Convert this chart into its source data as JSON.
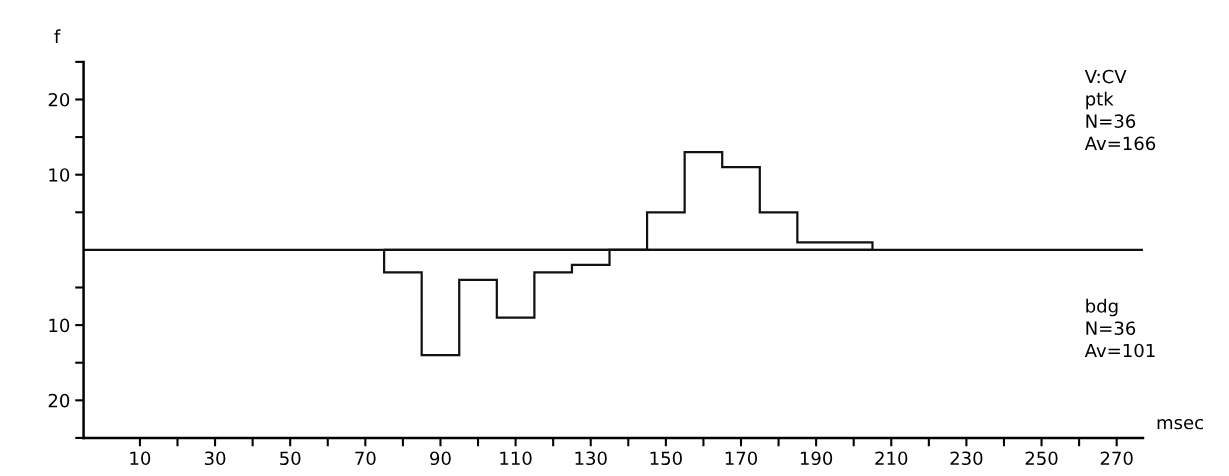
{
  "chart_data": {
    "type": "histogram",
    "xlabel": "msec",
    "ylabel": "f",
    "bins": [
      75,
      85,
      95,
      105,
      115,
      125,
      135,
      145,
      155,
      165,
      175,
      185,
      195,
      205
    ],
    "series": [
      {
        "color": "#111111",
        "values": [
          0,
          0,
          0,
          0,
          0,
          0,
          0,
          5,
          13,
          11,
          5,
          1,
          1
        ]
      },
      {
        "color": "#111111",
        "values": [
          -3,
          -14,
          -4,
          -9,
          -3,
          -2,
          0,
          0,
          0,
          0,
          0,
          0,
          0
        ]
      }
    ],
    "xlim": [
      -5,
      277
    ],
    "ylim": [
      -25,
      25
    ],
    "xticks": [
      10,
      {
        "value": 20,
        "label": null
      },
      30,
      {
        "value": 40,
        "label": null
      },
      50,
      {
        "value": 60,
        "label": null
      },
      70,
      {
        "value": 80,
        "label": null
      },
      90,
      {
        "value": 100,
        "label": null
      },
      110,
      {
        "value": 120,
        "label": null
      },
      130,
      {
        "value": 140,
        "label": null
      },
      150,
      {
        "value": 160,
        "label": null
      },
      170,
      {
        "value": 180,
        "label": null
      },
      190,
      {
        "value": 200,
        "label": null
      },
      210,
      {
        "value": 220,
        "label": null
      },
      230,
      {
        "value": 240,
        "label": null
      },
      250,
      {
        "value": 260,
        "label": null
      },
      270
    ],
    "yticks": [
      {
        "value": 25,
        "label": null
      },
      20,
      {
        "value": 15,
        "label": null
      },
      10,
      {
        "value": 5,
        "label": null
      },
      {
        "value": -5,
        "label": null
      },
      {
        "value": -10,
        "label": "10"
      },
      {
        "value": -15,
        "label": null
      },
      {
        "value": -20,
        "label": "20"
      },
      {
        "value": -25,
        "label": null
      }
    ],
    "ref_lines": [
      {
        "axis": "y",
        "value": 0,
        "color": "#111111"
      }
    ],
    "annotations": [
      "V:CV\nptk\nN=36\nAv=166",
      "bdg\nN=36\nAv=101"
    ],
    "grid": false,
    "legend": false
  }
}
